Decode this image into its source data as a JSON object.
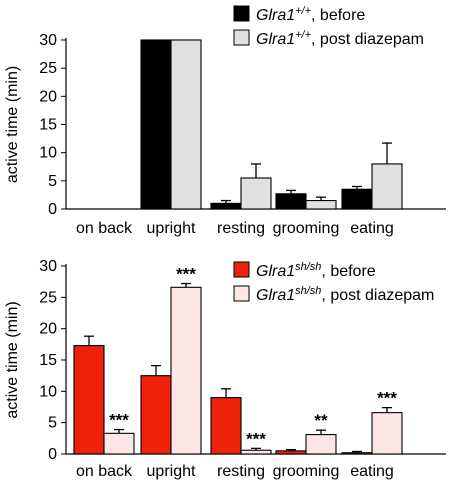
{
  "chart_data": [
    {
      "type": "bar",
      "panel": "top",
      "categories": [
        "on back",
        "upright",
        "resting",
        "grooming",
        "eating"
      ],
      "ylabel": "active time (min)",
      "ylim": [
        0,
        30
      ],
      "yticks": [
        0,
        5,
        10,
        15,
        20,
        25,
        30
      ],
      "grid": false,
      "legend_position": "top-right",
      "series": [
        {
          "name_base": "Glra1",
          "name_sup": "+/+",
          "name_suffix": ", before",
          "color": "#000000",
          "values": [
            0,
            30,
            1.0,
            2.7,
            3.5
          ],
          "errors": [
            0,
            0,
            0.5,
            0.6,
            0.5
          ],
          "annotations": [
            "",
            "",
            "",
            "",
            ""
          ]
        },
        {
          "name_base": "Glra1",
          "name_sup": "+/+",
          "name_suffix": ", post diazepam",
          "color": "#e0e0e0",
          "values": [
            0,
            30,
            5.5,
            1.5,
            8.0
          ],
          "errors": [
            0,
            0,
            2.5,
            0.6,
            3.7
          ],
          "annotations": [
            "",
            "",
            "",
            "",
            ""
          ]
        }
      ]
    },
    {
      "type": "bar",
      "panel": "bottom",
      "categories": [
        "on back",
        "upright",
        "resting",
        "grooming",
        "eating"
      ],
      "ylabel": "active time (min)",
      "ylim": [
        0,
        30
      ],
      "yticks": [
        0,
        5,
        10,
        15,
        20,
        25,
        30
      ],
      "grid": false,
      "legend_position": "top-right",
      "series": [
        {
          "name_base": "Glra1",
          "name_sup": "sh/sh",
          "name_suffix": ", before",
          "color": "#f0210a",
          "values": [
            17.3,
            12.5,
            9.0,
            0.5,
            0.2
          ],
          "errors": [
            1.5,
            1.6,
            1.4,
            0.2,
            0.2
          ],
          "annotations": [
            "",
            "",
            "",
            "",
            ""
          ]
        },
        {
          "name_base": "Glra1",
          "name_sup": "sh/sh",
          "name_suffix": ", post diazepam",
          "color": "#fde6e6",
          "values": [
            3.3,
            26.6,
            0.6,
            3.1,
            6.6
          ],
          "errors": [
            0.6,
            0.6,
            0.3,
            0.7,
            0.8
          ],
          "annotations": [
            "***",
            "***",
            "***",
            "**",
            "***"
          ]
        }
      ]
    }
  ]
}
